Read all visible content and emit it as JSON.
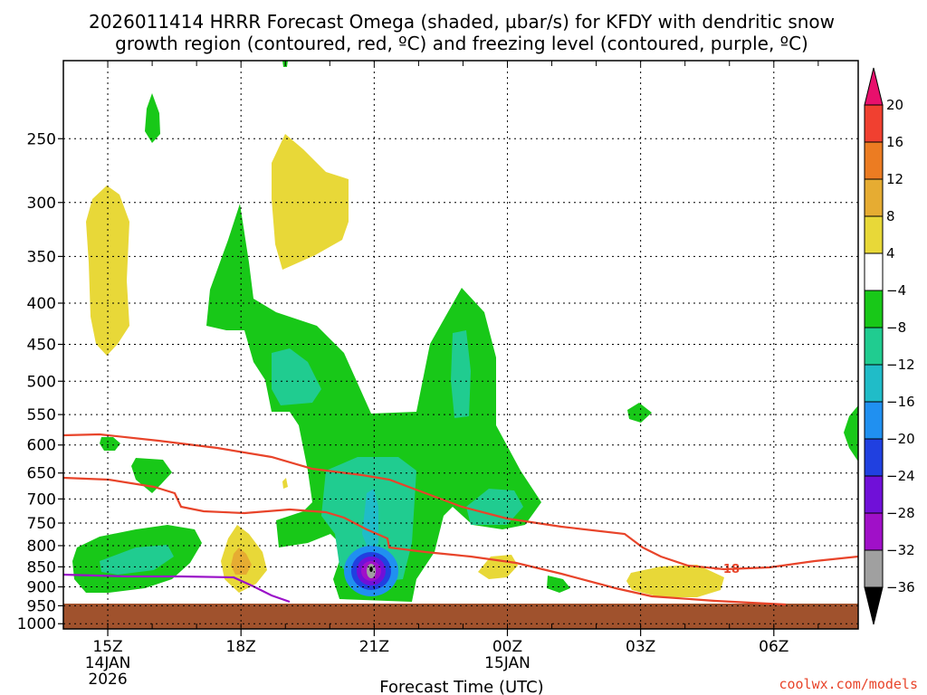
{
  "chart_data": {
    "type": "heatmap",
    "title": {
      "line1": "2026011414 HRRR Forecast Omega (shaded, µbar/s) for KFDY with dendritic snow",
      "line2": "growth region (contoured, red, ºC) and freezing level (contoured, purple, ºC)"
    },
    "xlabel": "Forecast Time (UTC)",
    "ylabel": "",
    "x_ticks": [
      {
        "label": "15Z",
        "sub1": "14JAN",
        "sub2": "2026",
        "hour": 15
      },
      {
        "label": "18Z",
        "sub1": "",
        "sub2": "",
        "hour": 18
      },
      {
        "label": "21Z",
        "sub1": "",
        "sub2": "",
        "hour": 21
      },
      {
        "label": "00Z",
        "sub1": "15JAN",
        "sub2": "",
        "hour": 24
      },
      {
        "label": "03Z",
        "sub1": "",
        "sub2": "",
        "hour": 27
      },
      {
        "label": "06Z",
        "sub1": "",
        "sub2": "",
        "hour": 30
      }
    ],
    "xlim": [
      14.0,
      31.9
    ],
    "y_ticks": [
      "250",
      "300",
      "350",
      "400",
      "450",
      "500",
      "550",
      "600",
      "650",
      "700",
      "750",
      "800",
      "850",
      "900",
      "950",
      "1000"
    ],
    "y_values": [
      250,
      300,
      350,
      400,
      450,
      500,
      550,
      600,
      650,
      700,
      750,
      800,
      850,
      900,
      950,
      1000
    ],
    "ylim_hPa": [
      200,
      1015
    ],
    "colorbar": {
      "ticks": [
        "20",
        "16",
        "12",
        "8",
        "4",
        "−4",
        "−8",
        "−12",
        "−16",
        "−20",
        "−24",
        "−28",
        "−32",
        "−36"
      ],
      "colors": [
        "#e8106c",
        "#f04030",
        "#ec7c22",
        "#e6ac32",
        "#e8d838",
        "#ffffff",
        "#18c818",
        "#20cc90",
        "#20bcc8",
        "#2090f0",
        "#2040e0",
        "#7010d8",
        "#a010c8",
        "#a0a0a0",
        "#000000"
      ]
    },
    "fill_colors": {
      "green": "#18c818",
      "teal": "#20cc90",
      "cyan": "#20bcc8",
      "blue": "#2090f0",
      "darkblue": "#2040e0",
      "violet": "#7010d8",
      "magenta": "#a010c8",
      "grey": "#a0a0a0",
      "yellow": "#e8d838",
      "gold": "#e6ac32",
      "ground": "#a0522d",
      "red_contour": "#e8442a",
      "purple_contour": "#9a10c8"
    },
    "contour_label": "−18",
    "credit": "coolwx.com/models"
  }
}
